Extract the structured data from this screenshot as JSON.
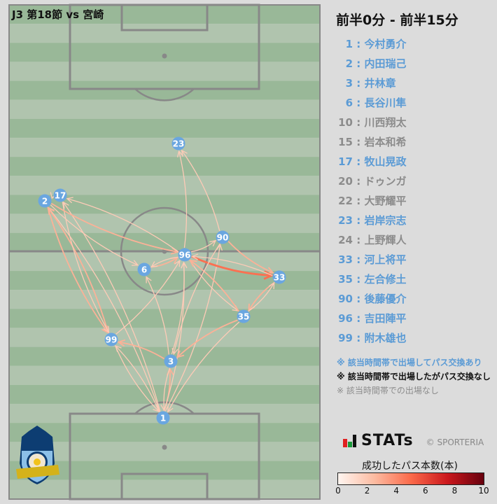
{
  "header": {
    "match": "J3 第18節 vs 宮崎",
    "period": "前半0分 - 前半15分"
  },
  "colors": {
    "active": "#5b9bd5",
    "inactive": "#8c8c8c",
    "pitch_dark": "#99b898",
    "pitch_light": "#b0c4ae",
    "node": "#6aa6e0"
  },
  "players": [
    {
      "num": "1",
      "name": "今村勇介",
      "status": "active"
    },
    {
      "num": "2",
      "name": "内田瑞己",
      "status": "active"
    },
    {
      "num": "3",
      "name": "井林章",
      "status": "active"
    },
    {
      "num": "6",
      "name": "長谷川隼",
      "status": "active"
    },
    {
      "num": "10",
      "name": "川西翔太",
      "status": "inactive"
    },
    {
      "num": "15",
      "name": "岩本和希",
      "status": "inactive"
    },
    {
      "num": "17",
      "name": "牧山晃政",
      "status": "active"
    },
    {
      "num": "20",
      "name": "ドゥンガ",
      "status": "inactive"
    },
    {
      "num": "22",
      "name": "大野耀平",
      "status": "inactive"
    },
    {
      "num": "23",
      "name": "岩岸宗志",
      "status": "active"
    },
    {
      "num": "24",
      "name": "上野輝人",
      "status": "inactive"
    },
    {
      "num": "33",
      "name": "河上将平",
      "status": "active"
    },
    {
      "num": "35",
      "name": "左合修土",
      "status": "active"
    },
    {
      "num": "90",
      "name": "後藤優介",
      "status": "active"
    },
    {
      "num": "96",
      "name": "吉田陣平",
      "status": "active"
    },
    {
      "num": "99",
      "name": "附木雄也",
      "status": "active"
    }
  ],
  "legend_notes": [
    {
      "text": "※ 該当時間帯で出場してパス交換あり",
      "color": "#5b9bd5"
    },
    {
      "text": "※ 該当時間帯で出場したがパス交換なし",
      "color": "#111111"
    },
    {
      "text": "※ 該当時間帯での出場なし",
      "color": "#8c8c8c"
    }
  ],
  "passes": [
    {
      "from": "1",
      "to": "99",
      "count": 1
    },
    {
      "from": "99",
      "to": "1",
      "count": 1
    },
    {
      "from": "1",
      "to": "3",
      "count": 2
    },
    {
      "from": "3",
      "to": "1",
      "count": 1
    },
    {
      "from": "1",
      "to": "96",
      "count": 1
    },
    {
      "from": "1",
      "to": "90",
      "count": 1
    },
    {
      "from": "1",
      "to": "2",
      "count": 1
    },
    {
      "from": "1",
      "to": "17",
      "count": 1
    },
    {
      "from": "35",
      "to": "1",
      "count": 1
    },
    {
      "from": "3",
      "to": "99",
      "count": 2
    },
    {
      "from": "35",
      "to": "3",
      "count": 2
    },
    {
      "from": "3",
      "to": "6",
      "count": 1
    },
    {
      "from": "3",
      "to": "96",
      "count": 1
    },
    {
      "from": "99",
      "to": "96",
      "count": 1
    },
    {
      "from": "2",
      "to": "99",
      "count": 2
    },
    {
      "from": "99",
      "to": "2",
      "count": 2
    },
    {
      "from": "17",
      "to": "99",
      "count": 1
    },
    {
      "from": "2",
      "to": "96",
      "count": 2
    },
    {
      "from": "96",
      "to": "17",
      "count": 1
    },
    {
      "from": "2",
      "to": "6",
      "count": 1
    },
    {
      "from": "6",
      "to": "96",
      "count": 2
    },
    {
      "from": "96",
      "to": "6",
      "count": 1
    },
    {
      "from": "96",
      "to": "90",
      "count": 1
    },
    {
      "from": "96",
      "to": "23",
      "count": 1
    },
    {
      "from": "90",
      "to": "23",
      "count": 1
    },
    {
      "from": "90",
      "to": "33",
      "count": 2
    },
    {
      "from": "96",
      "to": "33",
      "count": 4
    },
    {
      "from": "33",
      "to": "96",
      "count": 1
    },
    {
      "from": "96",
      "to": "35",
      "count": 1
    },
    {
      "from": "35",
      "to": "96",
      "count": 2
    },
    {
      "from": "33",
      "to": "35",
      "count": 2
    },
    {
      "from": "35",
      "to": "33",
      "count": 1
    },
    {
      "from": "17",
      "to": "2",
      "count": 1
    },
    {
      "from": "90",
      "to": "3",
      "count": 1
    }
  ],
  "brand": {
    "logo": "STATs",
    "copyright": "© SPORTERIA",
    "crest_text": "Kamatamare KAGAWA"
  },
  "colorbar": {
    "title": "成功したパス本数(本)",
    "min": 0,
    "max": 10,
    "ticks": [
      "0",
      "2",
      "4",
      "6",
      "8",
      "10"
    ],
    "colormap": "Reds"
  }
}
